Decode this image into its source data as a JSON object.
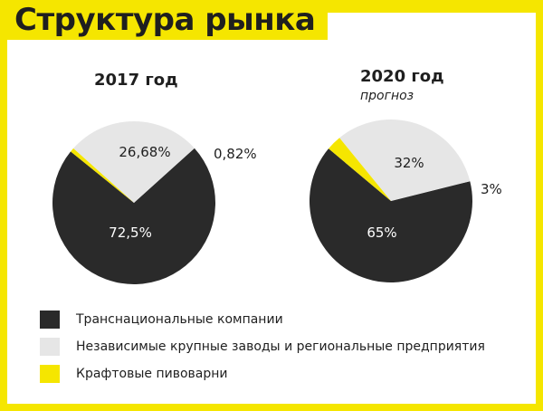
{
  "title": "Структура рынка",
  "colors": {
    "accent": "#f5e600",
    "dark": "#2a2a2a",
    "light": "#e6e6e6",
    "craft": "#f5e600"
  },
  "chart_data": [
    {
      "type": "pie",
      "title": "2017 год",
      "subtitle": "",
      "slices": [
        {
          "label": "Транснациональные компании",
          "value": 72.5,
          "display": "72,5%"
        },
        {
          "label": "Независимые крупные заводы и региональные предприятия",
          "value": 26.68,
          "display": "26,68%"
        },
        {
          "label": "Крафтовые пивоварни",
          "value": 0.82,
          "display": "0,82%"
        }
      ]
    },
    {
      "type": "pie",
      "title": "2020 год",
      "subtitle": "прогноз",
      "slices": [
        {
          "label": "Транснациональные компании",
          "value": 65,
          "display": "65%"
        },
        {
          "label": "Независимые крупные заводы и региональные предприятия",
          "value": 32,
          "display": "32%"
        },
        {
          "label": "Крафтовые пивоварни",
          "value": 3,
          "display": "3%"
        }
      ]
    }
  ],
  "legend": [
    {
      "label": "Транснациональные компании",
      "color": "#2a2a2a"
    },
    {
      "label": "Независимые крупные заводы и региональные предприятия",
      "color": "#e6e6e6"
    },
    {
      "label": "Крафтовые пивоварни",
      "color": "#f5e600"
    }
  ]
}
